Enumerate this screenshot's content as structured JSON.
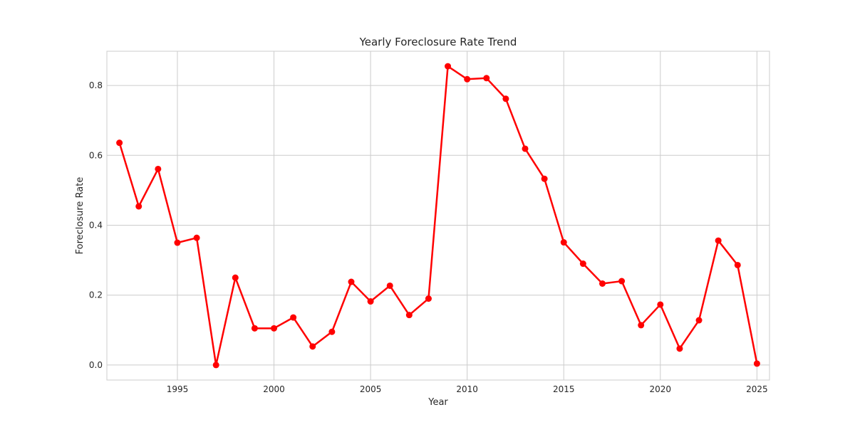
{
  "chart_data": {
    "type": "line",
    "title": "Yearly Foreclosure Rate Trend",
    "xlabel": "Year",
    "ylabel": "Foreclosure Rate",
    "xlim": [
      1991.35,
      2025.65
    ],
    "ylim": [
      -0.043,
      0.898
    ],
    "xticks": [
      1995,
      2000,
      2005,
      2010,
      2015,
      2020,
      2025
    ],
    "yticks": [
      0.0,
      0.2,
      0.4,
      0.6,
      0.8
    ],
    "grid": true,
    "series_color": "#ff0000",
    "series": [
      {
        "x": [
          1992,
          1993,
          1994,
          1995,
          1996,
          1997,
          1998,
          1999,
          2000,
          2001,
          2002,
          2003,
          2004,
          2005,
          2006,
          2007,
          2008,
          2009,
          2010,
          2011,
          2012,
          2013,
          2014,
          2015,
          2016,
          2017,
          2018,
          2019,
          2020,
          2021,
          2022,
          2023,
          2024,
          2025
        ],
        "values": [
          0.636,
          0.454,
          0.561,
          0.35,
          0.364,
          0.0,
          0.25,
          0.105,
          0.105,
          0.136,
          0.053,
          0.095,
          0.238,
          0.182,
          0.227,
          0.143,
          0.19,
          0.855,
          0.818,
          0.821,
          0.762,
          0.619,
          0.533,
          0.351,
          0.29,
          0.233,
          0.24,
          0.114,
          0.173,
          0.047,
          0.128,
          0.356,
          0.286,
          0.004
        ]
      }
    ]
  }
}
